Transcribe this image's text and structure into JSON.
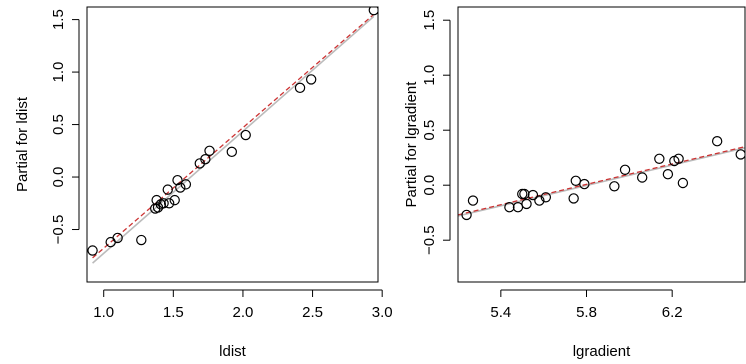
{
  "chart_data": [
    {
      "type": "scatter",
      "xlabel": "ldist",
      "ylabel": "Partial for ldist",
      "xlim": [
        0.88,
        2.97
      ],
      "ylim": [
        -1.0,
        1.62
      ],
      "xticks": [
        1.0,
        1.5,
        2.0,
        2.5,
        3.0
      ],
      "xtick_labels": [
        "1.0",
        "1.5",
        "2.0",
        "2.5",
        "3.0"
      ],
      "yticks": [
        -0.5,
        0.0,
        0.5,
        1.0,
        1.5
      ],
      "ytick_labels": [
        "-0.5",
        "0.0",
        "0.5",
        "1.0",
        "1.5"
      ],
      "points": [
        [
          0.92,
          -0.7
        ],
        [
          1.05,
          -0.62
        ],
        [
          1.1,
          -0.58
        ],
        [
          1.27,
          -0.6
        ],
        [
          1.37,
          -0.3
        ],
        [
          1.38,
          -0.22
        ],
        [
          1.39,
          -0.29
        ],
        [
          1.41,
          -0.26
        ],
        [
          1.43,
          -0.25
        ],
        [
          1.46,
          -0.12
        ],
        [
          1.47,
          -0.25
        ],
        [
          1.51,
          -0.22
        ],
        [
          1.53,
          -0.03
        ],
        [
          1.55,
          -0.1
        ],
        [
          1.59,
          -0.07
        ],
        [
          1.69,
          0.13
        ],
        [
          1.73,
          0.17
        ],
        [
          1.76,
          0.25
        ],
        [
          1.92,
          0.24
        ],
        [
          2.02,
          0.4
        ],
        [
          2.41,
          0.85
        ],
        [
          2.49,
          0.93
        ],
        [
          2.94,
          1.59
        ]
      ],
      "fit_solid": [
        [
          0.92,
          -0.82
        ],
        [
          2.94,
          1.53
        ]
      ],
      "fit_dashed": [
        [
          0.92,
          -0.77
        ],
        [
          2.94,
          1.55
        ]
      ],
      "grid": false
    },
    {
      "type": "scatter",
      "xlabel": "lgradient",
      "ylabel": "Partial for lgradient",
      "xlim": [
        5.2,
        6.54
      ],
      "ylim": [
        -0.88,
        1.62
      ],
      "xticks": [
        5.4,
        5.8,
        6.2
      ],
      "xtick_labels": [
        "5.4",
        "5.8",
        "6.2"
      ],
      "yticks": [
        -0.5,
        0.0,
        0.5,
        1.0,
        1.5
      ],
      "ytick_labels": [
        "-0.5",
        "0.0",
        "0.5",
        "1.0",
        "1.5"
      ],
      "points": [
        [
          5.24,
          -0.27
        ],
        [
          5.27,
          -0.14
        ],
        [
          5.44,
          -0.2
        ],
        [
          5.48,
          -0.2
        ],
        [
          5.5,
          -0.08
        ],
        [
          5.51,
          -0.08
        ],
        [
          5.52,
          -0.17
        ],
        [
          5.55,
          -0.09
        ],
        [
          5.58,
          -0.14
        ],
        [
          5.61,
          -0.11
        ],
        [
          5.74,
          -0.12
        ],
        [
          5.75,
          0.04
        ],
        [
          5.79,
          0.01
        ],
        [
          5.93,
          -0.01
        ],
        [
          5.98,
          0.14
        ],
        [
          6.06,
          0.07
        ],
        [
          6.14,
          0.24
        ],
        [
          6.18,
          0.1
        ],
        [
          6.21,
          0.22
        ],
        [
          6.23,
          0.24
        ],
        [
          6.25,
          0.02
        ],
        [
          6.41,
          0.4
        ],
        [
          6.52,
          0.28
        ]
      ],
      "fit_solid": [
        [
          5.2,
          -0.28
        ],
        [
          6.54,
          0.34
        ]
      ],
      "fit_dashed": [
        [
          5.2,
          -0.27
        ],
        [
          6.54,
          0.35
        ]
      ],
      "grid": false
    }
  ]
}
